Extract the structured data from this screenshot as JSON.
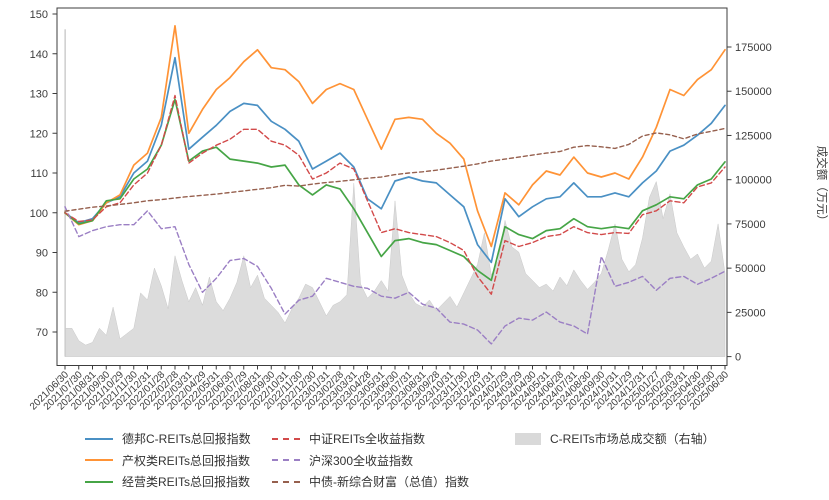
{
  "chart_data": {
    "type": "line",
    "title": "",
    "x_labels": [
      "2021/06/30",
      "2021/07/30",
      "2021/08/31",
      "2021/09/30",
      "2021/10/29",
      "2021/11/30",
      "2021/12/31",
      "2022/01/28",
      "2022/02/28",
      "2022/03/31",
      "2022/04/29",
      "2022/05/31",
      "2022/06/30",
      "2022/07/29",
      "2022/08/31",
      "2022/09/30",
      "2022/10/31",
      "2022/11/30",
      "2022/12/30",
      "2023/01/31",
      "2023/02/28",
      "2023/03/31",
      "2023/04/28",
      "2023/05/31",
      "2023/06/30",
      "2023/07/31",
      "2023/08/31",
      "2023/09/28",
      "2023/10/31",
      "2023/11/30",
      "2023/12/29",
      "2024/01/31",
      "2024/02/29",
      "2024/03/29",
      "2024/04/30",
      "2024/05/31",
      "2024/06/28",
      "2024/07/31",
      "2024/08/30",
      "2024/09/30",
      "2024/10/31",
      "2024/11/29",
      "2024/12/31",
      "2025/01/27",
      "2025/02/28",
      "2025/03/31",
      "2025/04/30",
      "2025/05/30",
      "2025/06/30"
    ],
    "left_axis": {
      "label": "",
      "ticks": [
        70,
        80,
        90,
        100,
        110,
        120,
        130,
        140,
        150
      ],
      "range": [
        61.5,
        151.5
      ],
      "grid": false
    },
    "right_axis": {
      "label": "成交额（万元）",
      "ticks": [
        0,
        25000,
        50000,
        75000,
        100000,
        125000,
        150000,
        175000
      ],
      "range": [
        0,
        193000
      ]
    },
    "legend_position": "bottom",
    "series": [
      {
        "name": "德邦C-REITs总回报指数",
        "color": "#4a90c4",
        "style": "solid",
        "axis": "left",
        "values": [
          100,
          97.5,
          98.5,
          102.5,
          104,
          110,
          113,
          122,
          139,
          116,
          119,
          122,
          125.5,
          127.5,
          127,
          123,
          121,
          118,
          111,
          113,
          115,
          111.5,
          103.5,
          101,
          108,
          109,
          108,
          107.5,
          104.5,
          101.5,
          92,
          87.5,
          103.5,
          99,
          101.5,
          103.5,
          104,
          107.5,
          104,
          104,
          105,
          104,
          107.5,
          110.5,
          115.5,
          117,
          119.5,
          122.5,
          127
        ]
      },
      {
        "name": "产权类REITs总回报指数",
        "color": "#ff9336",
        "style": "solid",
        "axis": "left",
        "values": [
          100,
          97,
          98,
          102.5,
          104.5,
          112,
          115,
          124,
          147,
          120,
          126,
          131,
          134,
          138,
          141,
          136.5,
          136,
          133,
          127.5,
          131,
          132.5,
          131,
          123.5,
          116,
          123.5,
          124,
          123.5,
          120,
          117.5,
          113.5,
          100.5,
          91.5,
          105,
          102,
          107,
          110.5,
          109.5,
          114,
          110,
          109,
          110,
          108.5,
          114,
          121.5,
          131,
          129.5,
          133.5,
          136,
          141
        ]
      },
      {
        "name": "经营类REITs总回报指数",
        "color": "#46a546",
        "style": "solid",
        "axis": "left",
        "values": [
          100,
          97.2,
          98,
          103,
          103.5,
          108.5,
          111,
          117,
          128.5,
          113,
          115.5,
          116.5,
          113.5,
          113,
          112.5,
          111.5,
          112,
          107,
          104.5,
          107,
          106,
          101,
          95,
          89,
          93,
          93.5,
          92.5,
          92,
          90.5,
          89,
          85.5,
          83,
          96.5,
          94.5,
          93.5,
          95.5,
          96,
          98.5,
          96.5,
          96,
          96.5,
          96,
          100.5,
          102,
          104,
          103.5,
          107,
          108.5,
          112.8
        ]
      },
      {
        "name": "中证REITs全收益指数",
        "color": "#d24a4a",
        "style": "dashed",
        "axis": "left",
        "values": [
          100,
          97.8,
          98.2,
          101.5,
          102.5,
          107,
          110,
          117,
          129.5,
          112.5,
          115,
          117,
          118.5,
          121,
          121,
          118,
          117,
          114.5,
          108.5,
          110,
          112.5,
          111,
          103,
          95,
          96,
          95,
          94.5,
          94,
          92.5,
          90.5,
          84,
          79.5,
          93,
          91.5,
          92.5,
          94,
          94.5,
          96.5,
          95,
          94.5,
          95,
          94.8,
          99.5,
          100.5,
          103,
          102.5,
          106.5,
          107.5,
          111.5
        ]
      },
      {
        "name": "沪深300全收益指数",
        "color": "#9b7fc4",
        "style": "dashed",
        "axis": "left",
        "values": [
          101.5,
          94,
          95.5,
          96.5,
          97,
          97,
          100.5,
          96,
          96.5,
          87,
          80,
          83.5,
          88,
          88.5,
          86.5,
          81,
          74.5,
          78,
          79,
          83.5,
          82.5,
          81.5,
          81,
          79,
          78.5,
          80,
          77,
          76,
          72.5,
          72,
          70.5,
          67,
          71.5,
          73.5,
          73,
          75,
          72.5,
          71.5,
          69.5,
          89,
          81.5,
          82.5,
          84,
          80.5,
          83.5,
          84,
          82,
          83.5,
          85.3
        ]
      },
      {
        "name": "中债-新综合财富（总值）指数",
        "color": "#96604e",
        "style": "dashed",
        "axis": "left",
        "values": [
          100.4,
          100.9,
          101.4,
          101.7,
          102.1,
          102.5,
          103,
          103.3,
          103.7,
          104.1,
          104.4,
          104.7,
          105.1,
          105.5,
          105.9,
          106.3,
          106.9,
          106.7,
          107.2,
          107.6,
          107.9,
          108.3,
          108.7,
          109,
          109.6,
          110,
          110.3,
          110.7,
          111.2,
          111.7,
          112.3,
          113,
          113.5,
          114,
          114.5,
          115,
          115.4,
          116.5,
          116.9,
          116.6,
          116.2,
          117.2,
          119.3,
          120.1,
          119.6,
          118.6,
          119.8,
          120.5,
          121.2
        ]
      },
      {
        "name": "C-REITs市场总成交额（右轴）",
        "color": "#d9d9d9",
        "style": "area",
        "axis": "right",
        "x_step_months": 0.5,
        "values": [
          185000,
          16000,
          9000,
          6500,
          8000,
          16000,
          12000,
          28000,
          10000,
          13000,
          16000,
          36000,
          32000,
          50000,
          40000,
          27000,
          57000,
          43000,
          31000,
          39000,
          29000,
          45000,
          31000,
          26000,
          33000,
          42000,
          57000,
          39000,
          46000,
          33000,
          29000,
          25000,
          19000,
          27000,
          33000,
          41000,
          39000,
          31000,
          23000,
          29000,
          31000,
          35000,
          98000,
          41000,
          33000,
          37000,
          43000,
          37000,
          88000,
          46000,
          36000,
          30000,
          28000,
          32000,
          26000,
          30000,
          34000,
          28000,
          36000,
          44000,
          52000,
          70000,
          46000,
          54000,
          77000,
          62000,
          59000,
          47000,
          43000,
          39000,
          41000,
          37000,
          45000,
          40000,
          49000,
          43000,
          38000,
          42000,
          47000,
          60000,
          75000,
          55000,
          48000,
          52000,
          67000,
          90000,
          99000,
          78000,
          92000,
          70000,
          62000,
          55000,
          58000,
          50000,
          54000,
          75000,
          47000
        ]
      }
    ]
  },
  "legend": {
    "items": [
      {
        "label": "德邦C-REITs总回报指数",
        "swatch": "solid"
      },
      {
        "label": "产权类REITs总回报指数",
        "swatch": "solid"
      },
      {
        "label": "经营类REITs总回报指数",
        "swatch": "solid"
      },
      {
        "label": "中证REITs全收益指数",
        "swatch": "dashed"
      },
      {
        "label": "沪深300全收益指数",
        "swatch": "dashed"
      },
      {
        "label": "中债-新综合财富（总值）指数",
        "swatch": "dashed"
      },
      {
        "label": "C-REITs市场总成交额（右轴）",
        "swatch": "patch"
      }
    ]
  }
}
